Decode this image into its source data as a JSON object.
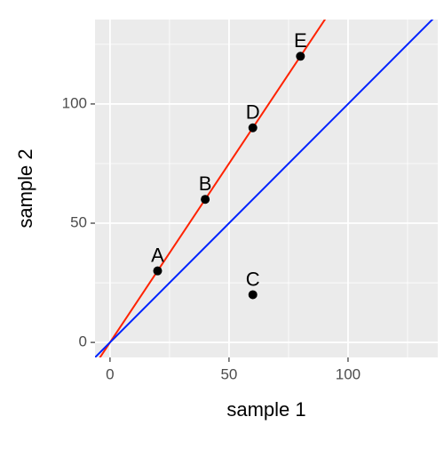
{
  "chart_data": {
    "type": "scatter",
    "x_label": "sample 1",
    "y_label": "sample 2",
    "x": [
      20,
      40,
      60,
      60,
      80
    ],
    "y": [
      30,
      60,
      20,
      90,
      120
    ],
    "labels": [
      "A",
      "B",
      "C",
      "D",
      "E"
    ],
    "color": "#000000",
    "lines": [
      {
        "slope": 1.5,
        "intercept": 0,
        "color": "#ff2200"
      },
      {
        "slope": 1,
        "intercept": 0,
        "color": "#0022ff"
      }
    ],
    "xlim": [
      -6.3,
      137.7
    ],
    "ylim": [
      -6.3,
      135.4
    ],
    "xticks": [
      0,
      50,
      100
    ],
    "yticks": [
      0,
      50,
      100
    ],
    "minor_xticks": [
      25,
      75,
      125
    ],
    "minor_yticks": [
      25,
      75,
      125
    ],
    "grid": true
  }
}
